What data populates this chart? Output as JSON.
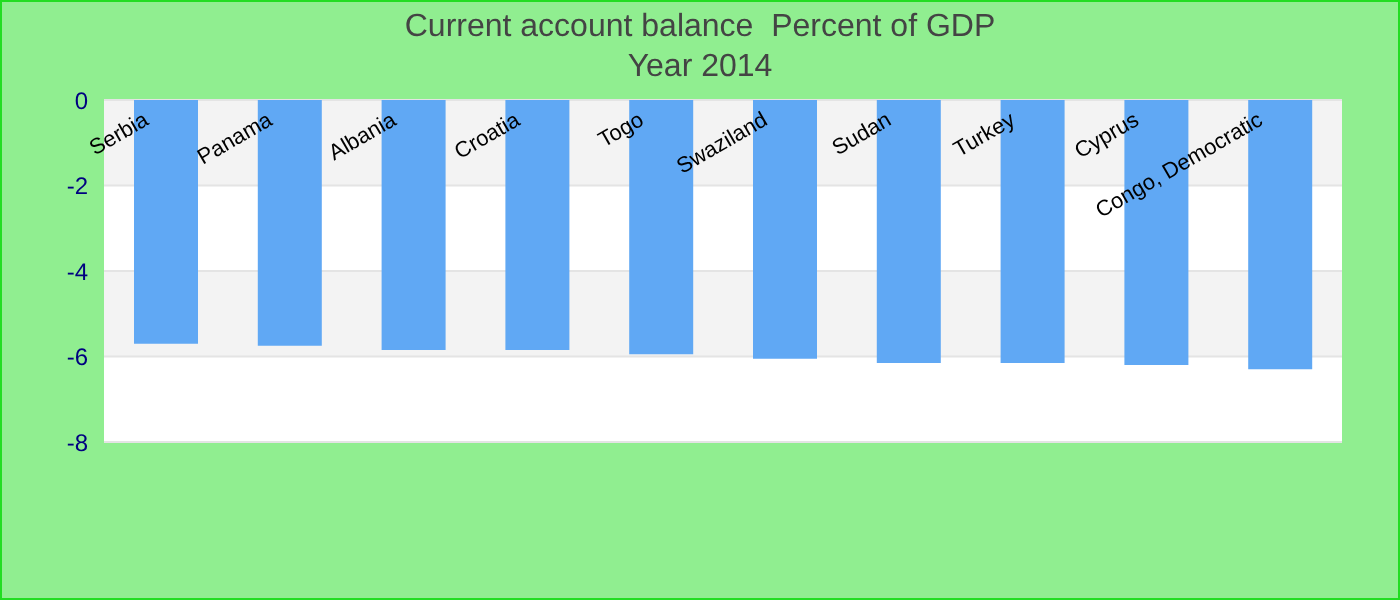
{
  "chart_data": {
    "type": "bar",
    "title": "Current account balance  Percent of GDP",
    "subtitle": "Year 2014",
    "categories": [
      "Serbia",
      "Panama",
      "Albania",
      "Croatia",
      "Togo",
      "Swaziland",
      "Sudan",
      "Turkey",
      "Cyprus",
      "Congo, Democratic"
    ],
    "values": [
      -5.7,
      -5.75,
      -5.85,
      -5.85,
      -5.95,
      -6.05,
      -6.15,
      -6.15,
      -6.2,
      -6.3
    ],
    "color": "#60a8f4",
    "ylim": [
      -8,
      0
    ],
    "yticks": [
      -8,
      -6,
      -4,
      -2,
      0
    ],
    "grid": "y"
  }
}
